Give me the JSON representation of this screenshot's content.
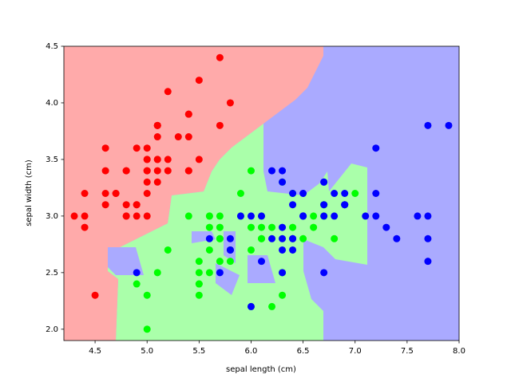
{
  "chart_data": {
    "type": "scatter",
    "xlabel": "sepal length (cm)",
    "ylabel": "sepal width (cm)",
    "xlim": [
      4.2,
      8.0
    ],
    "ylim": [
      1.9,
      4.5
    ],
    "xticks": [
      4.5,
      {
        "value": 5,
        "label": "5.0"
      },
      5.5,
      {
        "value": 6,
        "label": "6.0"
      },
      6.5,
      {
        "value": 7,
        "label": "7.0"
      },
      7.5,
      {
        "value": 8,
        "label": "8.0"
      }
    ],
    "yticks": [
      {
        "value": 2,
        "label": "2.0"
      },
      2.5,
      {
        "value": 3,
        "label": "3.0"
      },
      3.5,
      {
        "value": 4,
        "label": "4.0"
      },
      4.5
    ],
    "series": [
      {
        "color": "#ff0000",
        "x": [
          5.1,
          4.9,
          4.7,
          4.6,
          5.0,
          5.4,
          4.6,
          5.0,
          4.4,
          4.9,
          5.4,
          4.8,
          4.8,
          4.3,
          5.8,
          5.7,
          5.4,
          5.1,
          5.7,
          5.1,
          5.4,
          5.1,
          4.6,
          5.1,
          4.8,
          5.0,
          5.0,
          5.2,
          5.2,
          4.7,
          4.8,
          5.4,
          5.2,
          5.5,
          4.9,
          5.0,
          5.5,
          4.9,
          4.4,
          5.1,
          5.0,
          4.5,
          4.4,
          5.0,
          5.1,
          4.8,
          5.1,
          4.6,
          5.3,
          5.0
        ],
        "y": [
          3.5,
          3.0,
          3.2,
          3.1,
          3.6,
          3.9,
          3.4,
          3.4,
          2.9,
          3.1,
          3.7,
          3.4,
          3.0,
          3.0,
          4.0,
          4.4,
          3.9,
          3.5,
          3.8,
          3.8,
          3.4,
          3.7,
          3.6,
          3.3,
          3.4,
          3.0,
          3.4,
          3.5,
          3.4,
          3.2,
          3.1,
          3.4,
          4.1,
          4.2,
          3.1,
          3.2,
          3.5,
          3.6,
          3.0,
          3.4,
          3.5,
          2.3,
          3.2,
          3.5,
          3.8,
          3.0,
          3.8,
          3.2,
          3.7,
          3.3
        ]
      },
      {
        "color": "#00ff00",
        "x": [
          7.0,
          6.4,
          6.9,
          5.5,
          6.5,
          5.7,
          6.3,
          4.9,
          6.6,
          5.2,
          5.0,
          5.9,
          6.0,
          6.1,
          5.6,
          6.7,
          5.6,
          5.8,
          6.2,
          5.6,
          5.9,
          6.1,
          6.3,
          6.1,
          6.4,
          6.6,
          6.8,
          6.7,
          6.0,
          5.7,
          5.5,
          5.5,
          5.8,
          6.0,
          5.4,
          6.0,
          6.7,
          6.3,
          5.6,
          5.5,
          5.5,
          6.1,
          5.8,
          5.0,
          5.6,
          5.7,
          5.7,
          6.2,
          5.1,
          5.7
        ],
        "y": [
          3.2,
          3.2,
          3.1,
          2.3,
          2.8,
          2.8,
          3.3,
          2.4,
          2.9,
          2.7,
          2.0,
          3.0,
          2.2,
          2.9,
          2.9,
          3.1,
          3.0,
          2.7,
          2.2,
          2.5,
          3.2,
          2.8,
          2.5,
          2.8,
          2.9,
          3.0,
          2.8,
          3.0,
          2.9,
          2.6,
          2.4,
          2.4,
          2.7,
          2.7,
          3.0,
          3.4,
          3.1,
          2.3,
          3.0,
          2.5,
          2.6,
          3.0,
          2.6,
          2.3,
          2.7,
          3.0,
          2.9,
          2.9,
          2.5,
          2.8
        ]
      },
      {
        "color": "#0000ff",
        "x": [
          6.3,
          5.8,
          7.1,
          6.3,
          6.5,
          7.6,
          4.9,
          7.3,
          6.7,
          7.2,
          6.5,
          6.4,
          6.8,
          5.7,
          5.8,
          6.4,
          6.5,
          7.7,
          7.7,
          6.0,
          6.9,
          5.6,
          7.7,
          6.3,
          6.7,
          7.2,
          6.2,
          6.1,
          6.4,
          7.2,
          7.4,
          7.9,
          6.4,
          6.3,
          6.1,
          7.7,
          6.3,
          6.4,
          6.0,
          6.9,
          6.7,
          6.9,
          5.8,
          6.8,
          6.7,
          6.7,
          6.3,
          6.5,
          6.2,
          5.9
        ],
        "y": [
          3.3,
          2.7,
          3.0,
          2.9,
          3.0,
          3.0,
          2.5,
          2.9,
          2.5,
          3.6,
          3.2,
          2.7,
          3.0,
          2.5,
          2.8,
          3.2,
          3.0,
          3.8,
          2.6,
          2.2,
          3.2,
          2.8,
          2.8,
          2.7,
          3.3,
          3.2,
          2.8,
          3.0,
          2.8,
          3.0,
          2.8,
          3.8,
          2.8,
          2.8,
          2.6,
          3.0,
          3.4,
          3.1,
          3.0,
          3.1,
          3.1,
          3.1,
          2.7,
          3.2,
          3.3,
          3.0,
          2.5,
          3.0,
          3.4,
          3.0
        ]
      }
    ]
  }
}
